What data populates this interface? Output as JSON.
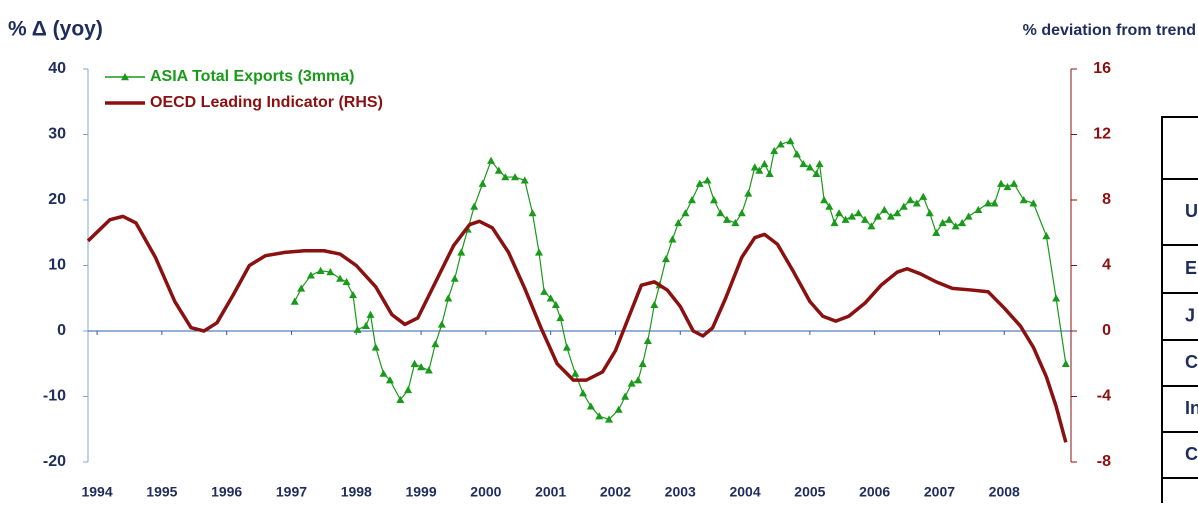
{
  "chart_data": {
    "type": "line",
    "title": "% Δ (yoy)",
    "y2_title": "% deviation from trend",
    "legend": "upper left",
    "grid": false,
    "xlim": [
      1993.86,
      2009.03
    ],
    "xticks": [
      1994,
      1995,
      1996,
      1997,
      1998,
      1999,
      2000,
      2001,
      2002,
      2003,
      2004,
      2005,
      2006,
      2007,
      2008
    ],
    "ylim": [
      -20,
      40
    ],
    "yticks": [
      -20,
      -10,
      0,
      10,
      20,
      30,
      40
    ],
    "y2lim": [
      -8,
      16
    ],
    "y2ticks": [
      -8,
      -4,
      0,
      4,
      8,
      12,
      16
    ],
    "series": [
      {
        "name": "ASIA Total Exports (3mma)",
        "color": "#1a9a1a",
        "marker": "triangle",
        "x": [
          1997.05,
          1997.15,
          1997.3,
          1997.45,
          1997.6,
          1997.75,
          1997.85,
          1997.95,
          1998.02,
          1998.15,
          1998.22,
          1998.3,
          1998.42,
          1998.52,
          1998.68,
          1998.8,
          1998.9,
          1999.0,
          1999.12,
          1999.22,
          1999.32,
          1999.42,
          1999.52,
          1999.62,
          1999.72,
          1999.82,
          1999.95,
          2000.08,
          2000.2,
          2000.3,
          2000.45,
          2000.6,
          2000.72,
          2000.82,
          2000.9,
          2001.0,
          2001.08,
          2001.15,
          2001.25,
          2001.38,
          2001.5,
          2001.62,
          2001.75,
          2001.9,
          2002.05,
          2002.15,
          2002.25,
          2002.35,
          2002.42,
          2002.5,
          2002.6,
          2002.68,
          2002.78,
          2002.88,
          2002.97,
          2003.08,
          2003.18,
          2003.3,
          2003.42,
          2003.52,
          2003.62,
          2003.72,
          2003.85,
          2003.95,
          2004.05,
          2004.15,
          2004.22,
          2004.3,
          2004.38,
          2004.45,
          2004.55,
          2004.7,
          2004.8,
          2004.9,
          2005.0,
          2005.1,
          2005.15,
          2005.22,
          2005.3,
          2005.38,
          2005.45,
          2005.55,
          2005.65,
          2005.75,
          2005.85,
          2005.95,
          2006.05,
          2006.15,
          2006.25,
          2006.35,
          2006.45,
          2006.55,
          2006.65,
          2006.75,
          2006.85,
          2006.95,
          2007.05,
          2007.15,
          2007.25,
          2007.35,
          2007.45,
          2007.6,
          2007.75,
          2007.85,
          2007.95,
          2008.05,
          2008.15,
          2008.3,
          2008.45,
          2008.65,
          2008.8,
          2008.95
        ],
        "values": [
          4.5,
          6.5,
          8.5,
          9.2,
          9,
          8,
          7.5,
          5.5,
          0.2,
          0.8,
          2.5,
          -2.5,
          -6.5,
          -7.5,
          -10.5,
          -9,
          -5,
          -5.5,
          -6,
          -2,
          1,
          5,
          8,
          12,
          15.5,
          19,
          22.5,
          26,
          24.5,
          23.5,
          23.5,
          23,
          18,
          12,
          6,
          5,
          4,
          2,
          -2.5,
          -6.5,
          -9.5,
          -11.5,
          -13,
          -13.5,
          -12,
          -10,
          -8,
          -7.5,
          -5,
          -1.5,
          4,
          7,
          11,
          14,
          16.5,
          18,
          20,
          22.5,
          23,
          20,
          18,
          17,
          16.5,
          18,
          21,
          25,
          24.5,
          25.5,
          24,
          27.5,
          28.5,
          29,
          27,
          25.5,
          25,
          24,
          25.5,
          20,
          19,
          16.5,
          18,
          17,
          17.5,
          18,
          17,
          16,
          17.5,
          18.5,
          17.5,
          18,
          19,
          20,
          19.5,
          20.5,
          18,
          15,
          16.5,
          17,
          16,
          16.5,
          17.5,
          18.5,
          19.5,
          19.5,
          22.5,
          22,
          22.5,
          20,
          19.5,
          14.5,
          5,
          -5
        ]
      },
      {
        "name": "OECD Leading Indicator (RHS)",
        "color": "#8b1010",
        "axis": "y2",
        "x": [
          1993.86,
          1994.2,
          1994.4,
          1994.6,
          1994.9,
          1995.2,
          1995.45,
          1995.65,
          1995.85,
          1996.1,
          1996.35,
          1996.6,
          1996.9,
          1997.2,
          1997.5,
          1997.75,
          1998.0,
          1998.3,
          1998.55,
          1998.75,
          1998.95,
          1999.2,
          1999.5,
          1999.75,
          1999.9,
          2000.1,
          2000.35,
          2000.6,
          2000.85,
          2001.1,
          2001.35,
          2001.55,
          2001.8,
          2002.0,
          2002.2,
          2002.4,
          2002.6,
          2002.8,
          2003.0,
          2003.2,
          2003.35,
          2003.5,
          2003.7,
          2003.95,
          2004.15,
          2004.3,
          2004.5,
          2004.75,
          2005.0,
          2005.2,
          2005.4,
          2005.6,
          2005.85,
          2006.1,
          2006.35,
          2006.5,
          2006.7,
          2006.95,
          2007.2,
          2007.5,
          2007.75,
          2008.0,
          2008.25,
          2008.45,
          2008.65,
          2008.8,
          2008.95
        ],
        "values": [
          5.5,
          6.8,
          7.0,
          6.6,
          4.5,
          1.8,
          0.2,
          0,
          0.5,
          2.2,
          4.0,
          4.6,
          4.8,
          4.9,
          4.9,
          4.7,
          4.0,
          2.7,
          1.0,
          0.4,
          0.8,
          2.8,
          5.2,
          6.5,
          6.7,
          6.3,
          4.8,
          2.6,
          0.2,
          -2.0,
          -3.0,
          -3.0,
          -2.5,
          -1.2,
          0.8,
          2.8,
          3.0,
          2.5,
          1.5,
          0,
          -0.3,
          0.2,
          2.0,
          4.5,
          5.7,
          5.9,
          5.3,
          3.6,
          1.8,
          0.9,
          0.6,
          0.9,
          1.7,
          2.8,
          3.6,
          3.8,
          3.5,
          3.0,
          2.6,
          2.5,
          2.4,
          1.4,
          0.3,
          -1.0,
          -2.8,
          -4.6,
          -6.8
        ]
      }
    ]
  },
  "table": {
    "rows": [
      "U",
      "E",
      "J",
      "C",
      "In",
      "C"
    ]
  }
}
